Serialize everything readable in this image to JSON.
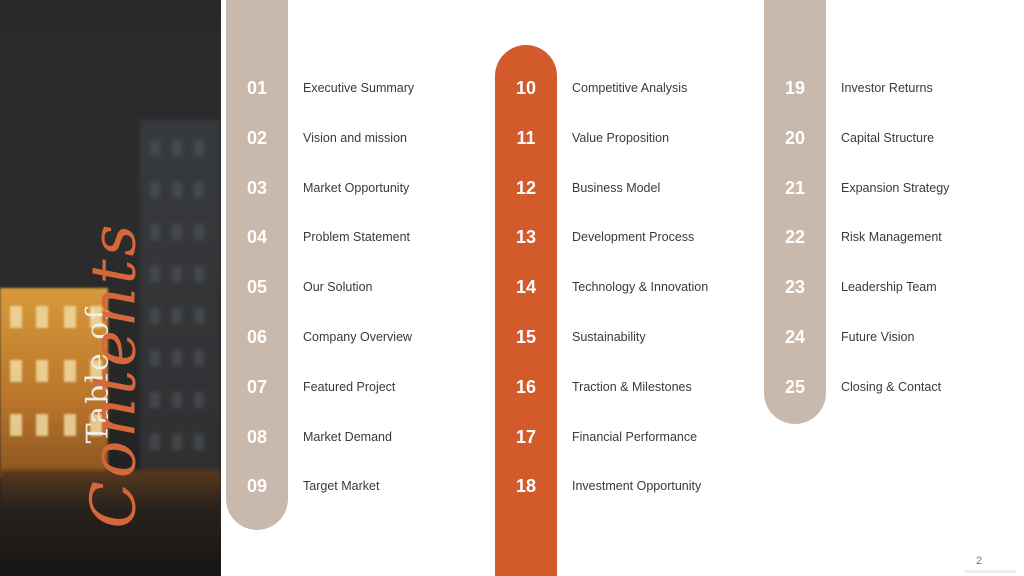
{
  "title": {
    "line1": "Table of",
    "line2": "Contents"
  },
  "columns": [
    {
      "items": [
        {
          "num": "01",
          "label": "Executive Summary"
        },
        {
          "num": "02",
          "label": "Vision and mission"
        },
        {
          "num": "03",
          "label": "Market Opportunity"
        },
        {
          "num": "04",
          "label": "Problem Statement"
        },
        {
          "num": "05",
          "label": "Our Solution"
        },
        {
          "num": "06",
          "label": "Company Overview"
        },
        {
          "num": "07",
          "label": "Featured Project"
        },
        {
          "num": "08",
          "label": "Market Demand"
        },
        {
          "num": "09",
          "label": "Target Market"
        }
      ]
    },
    {
      "items": [
        {
          "num": "10",
          "label": "Competitive Analysis"
        },
        {
          "num": "11",
          "label": "Value Proposition"
        },
        {
          "num": "12",
          "label": "Business Model"
        },
        {
          "num": "13",
          "label": "Development Process"
        },
        {
          "num": "14",
          "label": "Technology & Innovation"
        },
        {
          "num": "15",
          "label": "Sustainability"
        },
        {
          "num": "16",
          "label": "Traction & Milestones"
        },
        {
          "num": "17",
          "label": "Financial Performance"
        },
        {
          "num": "18",
          "label": "Investment Opportunity"
        }
      ]
    },
    {
      "items": [
        {
          "num": "19",
          "label": "Investor Returns"
        },
        {
          "num": "20",
          "label": "Capital Structure"
        },
        {
          "num": "21",
          "label": "Expansion Strategy"
        },
        {
          "num": "22",
          "label": "Risk Management"
        },
        {
          "num": "23",
          "label": "Leadership Team"
        },
        {
          "num": "24",
          "label": "Future Vision"
        },
        {
          "num": "25",
          "label": "Closing & Contact"
        }
      ]
    }
  ],
  "page_number": "2",
  "colors": {
    "accent": "#d35b2b",
    "taupe": "#c9b8ac",
    "text": "#3a3a3a"
  }
}
